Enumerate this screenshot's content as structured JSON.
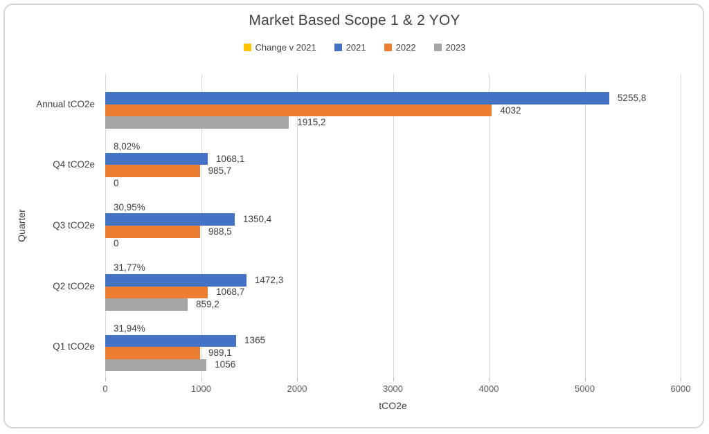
{
  "card": {
    "background": "#ffffff",
    "border_color": "#d6d6d6"
  },
  "chart_data": {
    "type": "bar",
    "orientation": "horizontal",
    "title": "Market Based Scope 1 & 2 YOY",
    "xlabel": "tCO2e",
    "ylabel": "Quarter",
    "xlim": [
      0,
      6000
    ],
    "xticks": [
      "0",
      "1000",
      "2000",
      "3000",
      "4000",
      "5000",
      "6000"
    ],
    "grid": true,
    "legend_position": "top",
    "colors": {
      "gridline": "#d9d9d9",
      "text_dark": "#404040",
      "text_tick": "#595959"
    },
    "series_meta": [
      {
        "name": "Change v 2021",
        "color": "#FFC000"
      },
      {
        "name": "2021",
        "color": "#4472C4"
      },
      {
        "name": "2022",
        "color": "#ED7D31"
      },
      {
        "name": "2023",
        "color": "#A5A5A5"
      }
    ],
    "rows": [
      {
        "category": "Annual tCO2e",
        "bar_values": [
          0,
          5255.8,
          4032,
          1915.2
        ],
        "data_labels": [
          "",
          "5255,8",
          "4032",
          "1915,2"
        ]
      },
      {
        "category": "Q4 tCO2e",
        "bar_values": [
          0,
          1068.1,
          985.7,
          0
        ],
        "data_labels": [
          "8,02%",
          "1068,1",
          "985,7",
          "0"
        ]
      },
      {
        "category": "Q3 tCO2e",
        "bar_values": [
          0,
          1350.4,
          988.5,
          0
        ],
        "data_labels": [
          "30,95%",
          "1350,4",
          "988,5",
          "0"
        ]
      },
      {
        "category": "Q2 tCO2e",
        "bar_values": [
          0,
          1472.3,
          1068.7,
          859.2
        ],
        "data_labels": [
          "31,77%",
          "1472,3",
          "1068,7",
          "859,2"
        ]
      },
      {
        "category": "Q1 tCO2e",
        "bar_values": [
          0,
          1365,
          989.1,
          1056
        ],
        "data_labels": [
          "31,94%",
          "1365",
          "989,1",
          "1056"
        ]
      }
    ]
  }
}
